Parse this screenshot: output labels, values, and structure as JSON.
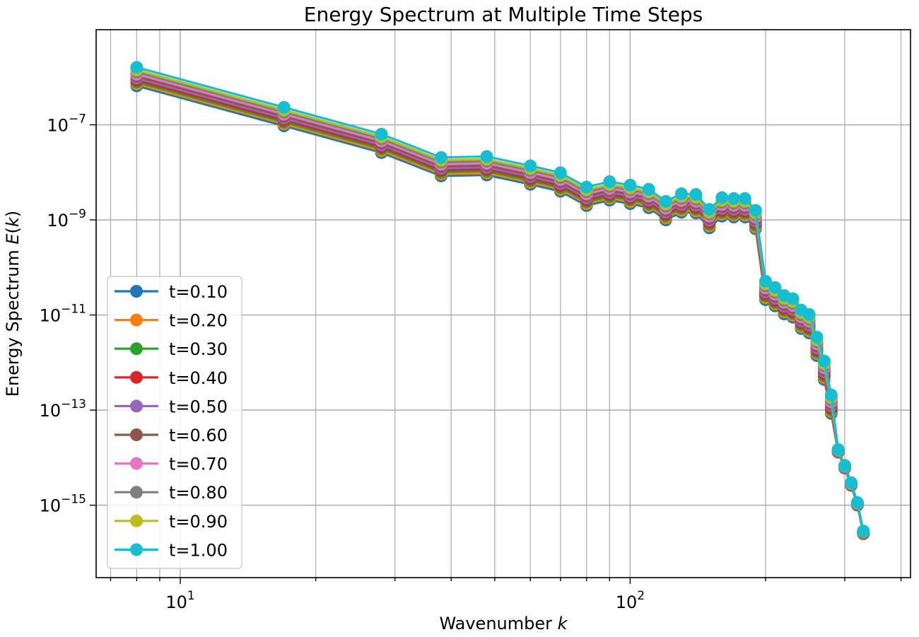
{
  "chart_data": {
    "type": "line",
    "title": "Energy Spectrum at Multiple Time Steps",
    "xlabel": "Wavenumber k",
    "ylabel": "Energy Spectrum E(k)",
    "xscale": "log",
    "yscale": "log",
    "xlim": [
      6.5,
      420
    ],
    "ylim": [
      3e-17,
      1e-05
    ],
    "grid": true,
    "legend_position": "lower-left",
    "x_major_ticks": [
      {
        "value": 10,
        "base": "10",
        "exp": "1"
      },
      {
        "value": 100,
        "base": "10",
        "exp": "2"
      }
    ],
    "y_major_ticks": [
      {
        "value": 1e-07,
        "base": "10",
        "exp": "−7"
      },
      {
        "value": 1e-09,
        "base": "10",
        "exp": "−9"
      },
      {
        "value": 1e-11,
        "base": "10",
        "exp": "−11"
      },
      {
        "value": 1e-13,
        "base": "10",
        "exp": "−13"
      },
      {
        "value": 1e-15,
        "base": "10",
        "exp": "−15"
      }
    ],
    "x": [
      8,
      17,
      28,
      38,
      48,
      60,
      70,
      80,
      90,
      100,
      110,
      120,
      130,
      140,
      150,
      160,
      170,
      180,
      190,
      200,
      210,
      220,
      230,
      240,
      250,
      260,
      270,
      280,
      290,
      300,
      310,
      320,
      330
    ],
    "base_values": [
      6.6e-07,
      9.5e-08,
      2.6e-08,
      8.4e-09,
      8.8e-09,
      5.6e-09,
      4e-09,
      2e-09,
      2.6e-09,
      2.2e-09,
      1.8e-09,
      1e-09,
      1.45e-09,
      1.4e-09,
      6.8e-10,
      1.2e-09,
      1.15e-09,
      1.15e-09,
      6.5e-10,
      2.1e-11,
      1.55e-11,
      1.05e-11,
      9e-12,
      5.2e-12,
      4.2e-12,
      1.4e-12,
      4.4e-13,
      8.5e-14,
      1.3e-14,
      6e-15,
      2.6e-15,
      1e-15,
      2.5e-16
    ],
    "series_growth_note_factors": [
      1.0,
      1.1,
      1.2,
      1.32,
      1.45,
      1.6,
      1.76,
      1.95,
      2.15,
      2.45
    ],
    "series": [
      {
        "name": "t=0.10",
        "color": "#1f77b4"
      },
      {
        "name": "t=0.20",
        "color": "#ff7f0e"
      },
      {
        "name": "t=0.30",
        "color": "#2ca02c"
      },
      {
        "name": "t=0.40",
        "color": "#d62728"
      },
      {
        "name": "t=0.50",
        "color": "#9467bd"
      },
      {
        "name": "t=0.60",
        "color": "#8c564b"
      },
      {
        "name": "t=0.70",
        "color": "#e377c2"
      },
      {
        "name": "t=0.80",
        "color": "#7f7f7f"
      },
      {
        "name": "t=0.90",
        "color": "#bcbd22"
      },
      {
        "name": "t=1.00",
        "color": "#17becf"
      }
    ]
  }
}
